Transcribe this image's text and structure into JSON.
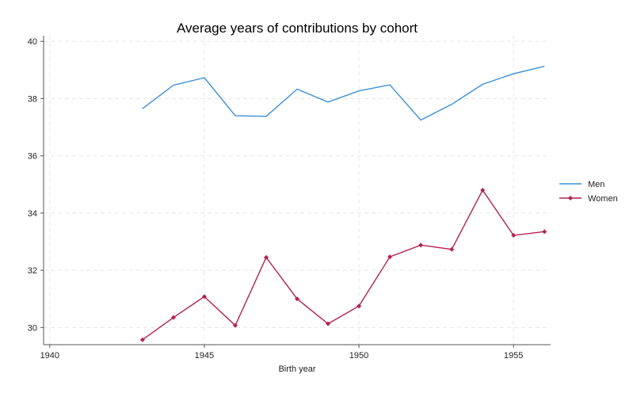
{
  "chart_data": {
    "type": "line",
    "title": "Average years of contributions by cohort",
    "xlabel": "Birth year",
    "ylabel": "",
    "xlim": [
      1939.8,
      1956.2
    ],
    "ylim": [
      29.4,
      40.2
    ],
    "xticks": [
      1940,
      1945,
      1950,
      1955
    ],
    "yticks": [
      30,
      32,
      34,
      36,
      38,
      40
    ],
    "grid": true,
    "legend_position": "right",
    "x": [
      1943,
      1944,
      1945,
      1946,
      1947,
      1948,
      1949,
      1950,
      1951,
      1952,
      1953,
      1954,
      1955,
      1956
    ],
    "series": [
      {
        "name": "Men",
        "color": "#3b8fd6",
        "marker": "none",
        "values": [
          37.65,
          38.47,
          38.73,
          37.4,
          37.38,
          38.33,
          37.88,
          38.27,
          38.48,
          37.25,
          37.8,
          38.5,
          38.87,
          39.13
        ]
      },
      {
        "name": "Women",
        "color": "#b5224f",
        "marker": "diamond",
        "values": [
          29.57,
          30.35,
          31.08,
          30.07,
          32.45,
          31.0,
          30.13,
          30.75,
          32.47,
          32.88,
          32.73,
          34.8,
          33.22,
          33.35
        ]
      }
    ]
  }
}
